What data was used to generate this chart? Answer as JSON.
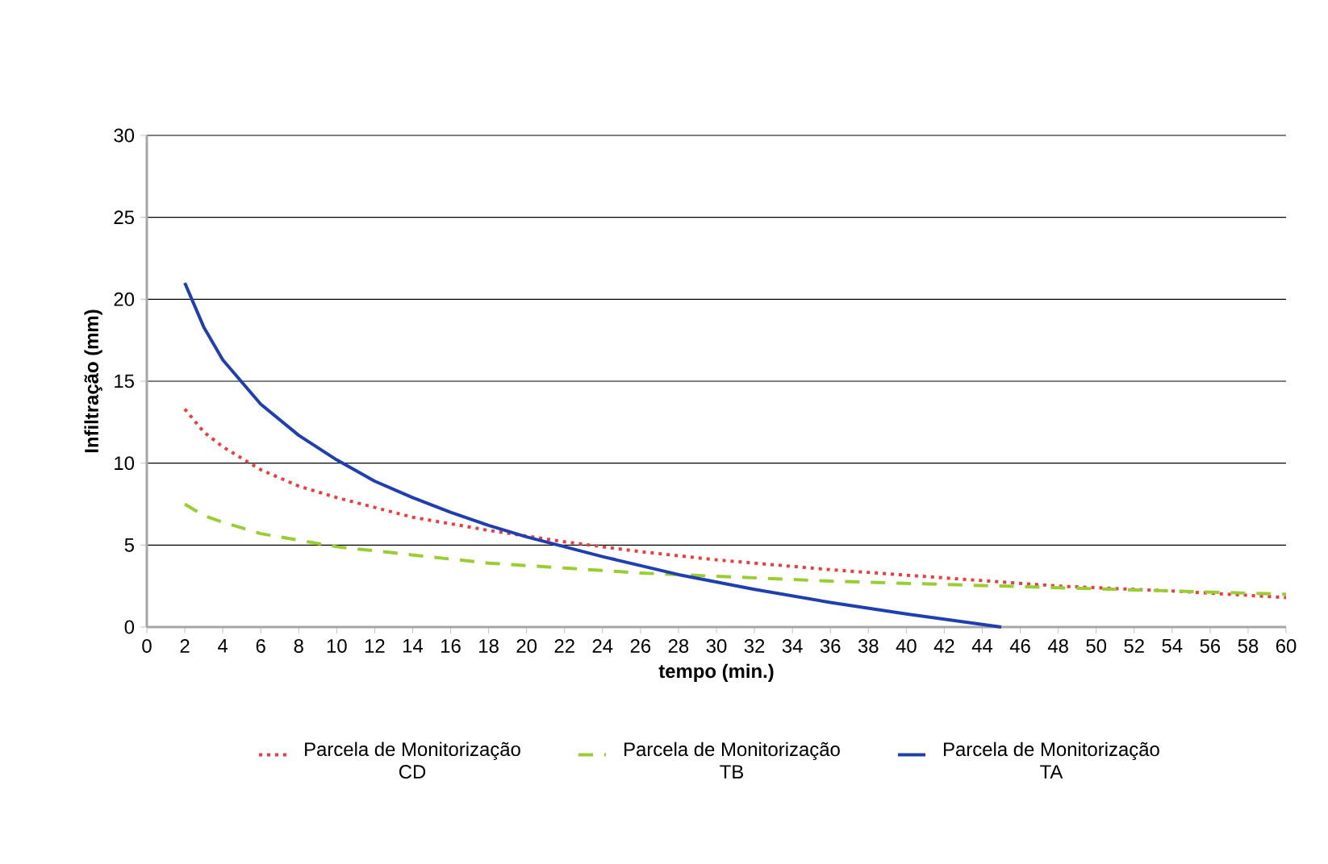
{
  "chart_data": {
    "type": "line",
    "xlabel": "tempo (min.)",
    "ylabel": "Infiltração (mm)",
    "xlim": [
      0,
      60
    ],
    "ylim": [
      0,
      30
    ],
    "xticks": [
      0,
      2,
      4,
      6,
      8,
      10,
      12,
      14,
      16,
      18,
      20,
      22,
      24,
      26,
      28,
      30,
      32,
      34,
      36,
      38,
      40,
      42,
      44,
      46,
      48,
      50,
      52,
      54,
      56,
      58,
      60
    ],
    "yticks": [
      0,
      5,
      10,
      15,
      20,
      25,
      30
    ],
    "grid": "y",
    "legend": "bottom",
    "marker": "none",
    "series": [
      {
        "name": "Parcela de Monitorização CD",
        "color": "#ee3b3b",
        "line_style": "dotted",
        "x": [
          2,
          3,
          4,
          6,
          8,
          10,
          14,
          18,
          22,
          26,
          30,
          36,
          42,
          48,
          54,
          60
        ],
        "values": [
          13.3,
          11.9,
          11.0,
          9.6,
          8.6,
          7.9,
          6.7,
          5.9,
          5.2,
          4.6,
          4.1,
          3.5,
          3.0,
          2.5,
          2.2,
          1.8
        ]
      },
      {
        "name": "Parcela de Monitorização TB",
        "color": "#9acd32",
        "line_style": "dashed",
        "x": [
          2,
          3,
          4,
          6,
          8,
          10,
          14,
          18,
          22,
          26,
          30,
          36,
          42,
          48,
          54,
          60
        ],
        "values": [
          7.5,
          6.8,
          6.4,
          5.7,
          5.3,
          4.9,
          4.4,
          3.9,
          3.6,
          3.3,
          3.1,
          2.8,
          2.6,
          2.4,
          2.2,
          2.0
        ]
      },
      {
        "name": "Parcela de Monitorização TA",
        "color": "#1f3fb0",
        "line_style": "solid",
        "x": [
          2,
          3,
          4,
          6,
          8,
          10,
          12,
          14,
          16,
          18,
          20,
          24,
          28,
          32,
          36,
          40,
          45
        ],
        "values": [
          21.0,
          18.3,
          16.3,
          13.6,
          11.7,
          10.2,
          8.9,
          7.9,
          7.0,
          6.2,
          5.5,
          4.3,
          3.2,
          2.3,
          1.5,
          0.8,
          0.0
        ]
      }
    ]
  }
}
